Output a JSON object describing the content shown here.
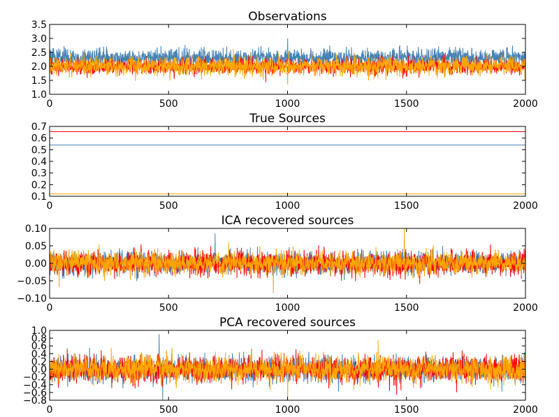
{
  "chart_data": [
    {
      "type": "line",
      "title": "Observations",
      "xlim": [
        0,
        2000
      ],
      "ylim": [
        1.0,
        3.5
      ],
      "xticks": [
        "0",
        "500",
        "1000",
        "1500",
        "2000"
      ],
      "yticks": [
        "1.0",
        "1.5",
        "2.0",
        "2.5",
        "3.0",
        "3.5"
      ],
      "grid": false,
      "series": [
        {
          "color": "#4682b4",
          "kind": "noise",
          "n": 2000,
          "mean": 2.3,
          "amplitude": 0.3,
          "peaks": [
            {
              "x": 1000,
              "y": 3.0
            }
          ]
        },
        {
          "color": "#ff0000",
          "kind": "noise",
          "n": 2000,
          "mean": 2.0,
          "amplitude": 0.25
        },
        {
          "color": "#ffa500",
          "kind": "noise",
          "n": 2000,
          "mean": 2.0,
          "amplitude": 0.3,
          "peaks": [
            {
              "x": 1000,
              "y": 1.35
            }
          ]
        }
      ]
    },
    {
      "type": "line",
      "title": "True Sources",
      "xlim": [
        0,
        2000
      ],
      "ylim": [
        0.1,
        0.7
      ],
      "xticks": [
        "0",
        "500",
        "1000",
        "1500",
        "2000"
      ],
      "yticks": [
        "0.1",
        "0.2",
        "0.3",
        "0.4",
        "0.5",
        "0.6",
        "0.7"
      ],
      "grid": false,
      "series": [
        {
          "color": "#ff0000",
          "kind": "constant",
          "x": [
            0,
            2000
          ],
          "y": [
            0.655,
            0.655
          ]
        },
        {
          "color": "#4682b4",
          "kind": "constant",
          "x": [
            0,
            2000
          ],
          "y": [
            0.54,
            0.54
          ]
        },
        {
          "color": "#ffa500",
          "kind": "constant",
          "x": [
            0,
            2000
          ],
          "y": [
            0.12,
            0.12
          ]
        }
      ]
    },
    {
      "type": "line",
      "title": "ICA recovered sources",
      "xlim": [
        0,
        2000
      ],
      "ylim": [
        -0.1,
        0.1
      ],
      "xticks": [
        "0",
        "500",
        "1000",
        "1500",
        "2000"
      ],
      "yticks": [
        "−0.10",
        "−0.05",
        "0.00",
        "0.05",
        "0.10"
      ],
      "grid": false,
      "series": [
        {
          "color": "#4682b4",
          "kind": "noise",
          "n": 2000,
          "mean": 0.0,
          "amplitude": 0.03,
          "peaks": [
            {
              "x": 695,
              "y": 0.085
            }
          ]
        },
        {
          "color": "#ff0000",
          "kind": "noise",
          "n": 2000,
          "mean": 0.0,
          "amplitude": 0.03
        },
        {
          "color": "#ffa500",
          "kind": "noise",
          "n": 2000,
          "mean": 0.0,
          "amplitude": 0.03,
          "peaks": [
            {
              "x": 1490,
              "y": 0.1
            },
            {
              "x": 940,
              "y": -0.085
            }
          ]
        }
      ]
    },
    {
      "type": "line",
      "title": "PCA recovered sources",
      "xlim": [
        0,
        2000
      ],
      "ylim": [
        -0.8,
        1.0
      ],
      "xticks": [
        "0",
        "500",
        "1000",
        "1500",
        "2000"
      ],
      "yticks": [
        "−0.8",
        "−0.6",
        "−0.4",
        "−0.2",
        "0.0",
        "0.2",
        "0.4",
        "0.6",
        "0.8",
        "1.0"
      ],
      "grid": false,
      "series": [
        {
          "color": "#4682b4",
          "kind": "noise",
          "n": 2000,
          "mean": 0.0,
          "amplitude": 0.3,
          "peaks": [
            {
              "x": 460,
              "y": 0.9
            },
            {
              "x": 475,
              "y": -0.8
            }
          ]
        },
        {
          "color": "#ff0000",
          "kind": "noise",
          "n": 2000,
          "mean": 0.0,
          "amplitude": 0.3
        },
        {
          "color": "#ffa500",
          "kind": "noise",
          "n": 2000,
          "mean": 0.0,
          "amplitude": 0.3,
          "peaks": [
            {
              "x": 1000,
              "y": -0.8
            },
            {
              "x": 1380,
              "y": 0.75
            }
          ]
        }
      ]
    }
  ]
}
